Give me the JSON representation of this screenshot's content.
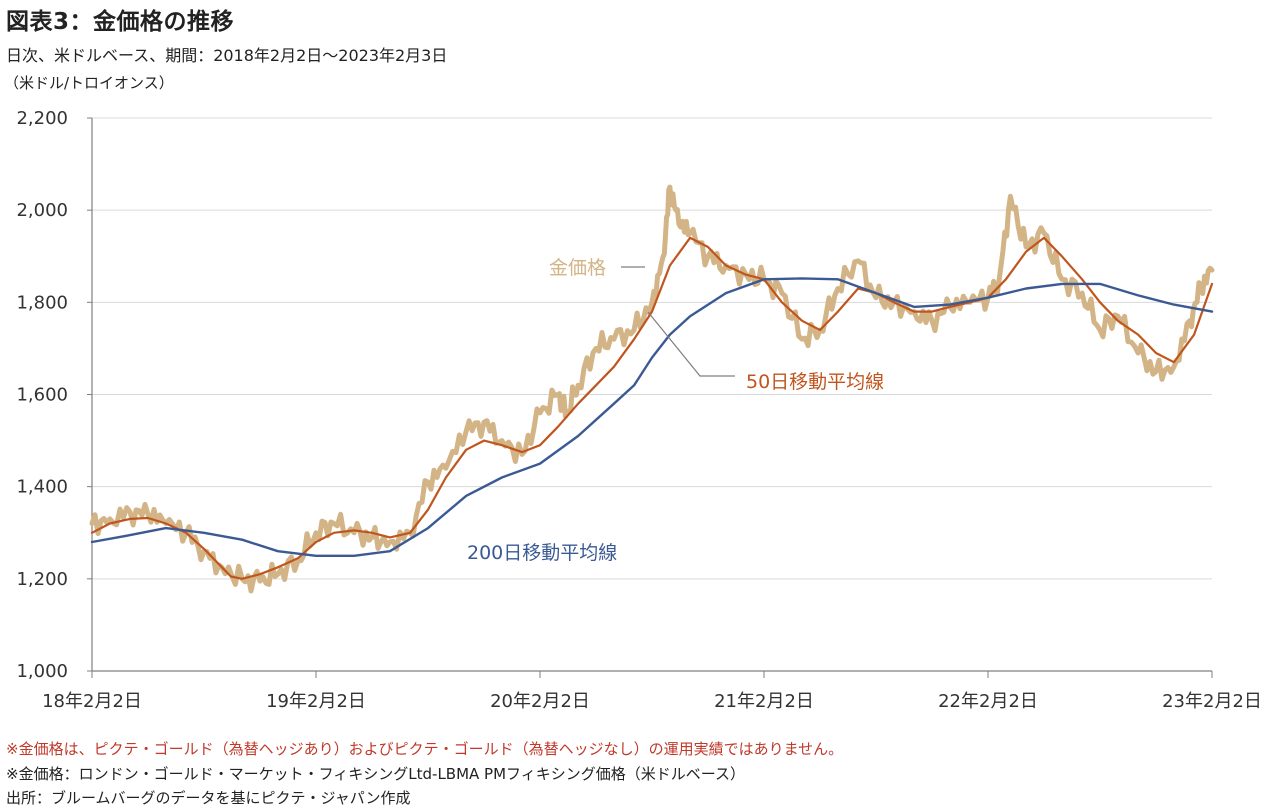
{
  "header": {
    "title": "図表3：金価格の推移",
    "subtitle": "日次、米ドルベース、期間：2018年2月2日～2023年2月3日",
    "unit": "（米ドル/トロイオンス）"
  },
  "notes": {
    "red": "※金価格は、ピクテ・ゴールド（為替ヘッジあり）およびピクテ・ゴールド（為替ヘッジなし）の運用実績ではありません。",
    "line1": "※金価格：ロンドン・ゴールド・マーケット・フィキシングLtd-LBMA PMフィキシング価格（米ドルベース）",
    "line2": "出所：ブルームバーグのデータを基にピクテ・ジャパン作成"
  },
  "colors": {
    "gold": "#d2b486",
    "ma50": "#c0561e",
    "ma200": "#3b5a94",
    "grid": "#d9d9d9",
    "axis": "#808080",
    "note_red": "#c0392b"
  },
  "chart_data": {
    "type": "line",
    "ylim": [
      1000,
      2200
    ],
    "yticks": [
      "1,000",
      "1,200",
      "1,400",
      "1,600",
      "1,800",
      "2,000",
      "2,200"
    ],
    "ytick_values": [
      1000,
      1200,
      1400,
      1600,
      1800,
      2000,
      2200
    ],
    "xlim": [
      2018.0,
      2023.0
    ],
    "xticks": [
      "18年2月2日",
      "19年2月2日",
      "20年2月2日",
      "21年2月2日",
      "22年2月2日",
      "23年2月2日"
    ],
    "xtick_values": [
      2018.0,
      2019.0,
      2020.0,
      2021.0,
      2022.0,
      2023.0
    ],
    "grid": "horizontal",
    "series": [
      {
        "name": "金価格",
        "color": "#d2b486",
        "points": [
          [
            2018.0,
            1320
          ],
          [
            2018.08,
            1330
          ],
          [
            2018.17,
            1345
          ],
          [
            2018.25,
            1340
          ],
          [
            2018.33,
            1320
          ],
          [
            2018.42,
            1300
          ],
          [
            2018.5,
            1260
          ],
          [
            2018.58,
            1225
          ],
          [
            2018.67,
            1200
          ],
          [
            2018.75,
            1195
          ],
          [
            2018.83,
            1210
          ],
          [
            2018.92,
            1240
          ],
          [
            2019.0,
            1300
          ],
          [
            2019.08,
            1320
          ],
          [
            2019.17,
            1300
          ],
          [
            2019.25,
            1290
          ],
          [
            2019.33,
            1280
          ],
          [
            2019.42,
            1300
          ],
          [
            2019.5,
            1410
          ],
          [
            2019.58,
            1440
          ],
          [
            2019.67,
            1520
          ],
          [
            2019.75,
            1540
          ],
          [
            2019.83,
            1500
          ],
          [
            2019.92,
            1470
          ],
          [
            2020.0,
            1560
          ],
          [
            2020.08,
            1600
          ],
          [
            2020.12,
            1560
          ],
          [
            2020.17,
            1620
          ],
          [
            2020.25,
            1700
          ],
          [
            2020.33,
            1720
          ],
          [
            2020.42,
            1740
          ],
          [
            2020.5,
            1800
          ],
          [
            2020.55,
            1900
          ],
          [
            2020.58,
            2050
          ],
          [
            2020.62,
            1970
          ],
          [
            2020.67,
            1950
          ],
          [
            2020.75,
            1900
          ],
          [
            2020.83,
            1880
          ],
          [
            2020.92,
            1860
          ],
          [
            2021.0,
            1850
          ],
          [
            2021.08,
            1820
          ],
          [
            2021.17,
            1720
          ],
          [
            2021.25,
            1740
          ],
          [
            2021.33,
            1830
          ],
          [
            2021.42,
            1890
          ],
          [
            2021.5,
            1810
          ],
          [
            2021.58,
            1800
          ],
          [
            2021.67,
            1780
          ],
          [
            2021.75,
            1760
          ],
          [
            2021.83,
            1790
          ],
          [
            2021.92,
            1800
          ],
          [
            2022.0,
            1810
          ],
          [
            2022.05,
            1850
          ],
          [
            2022.1,
            2030
          ],
          [
            2022.17,
            1920
          ],
          [
            2022.25,
            1950
          ],
          [
            2022.33,
            1850
          ],
          [
            2022.42,
            1820
          ],
          [
            2022.5,
            1740
          ],
          [
            2022.58,
            1770
          ],
          [
            2022.67,
            1690
          ],
          [
            2022.75,
            1650
          ],
          [
            2022.83,
            1660
          ],
          [
            2022.9,
            1760
          ],
          [
            2022.95,
            1830
          ],
          [
            2023.0,
            1870
          ]
        ]
      },
      {
        "name": "50日移動平均線",
        "color": "#c0561e",
        "points": [
          [
            2018.0,
            1300
          ],
          [
            2018.08,
            1320
          ],
          [
            2018.17,
            1330
          ],
          [
            2018.25,
            1332
          ],
          [
            2018.33,
            1320
          ],
          [
            2018.42,
            1300
          ],
          [
            2018.5,
            1265
          ],
          [
            2018.58,
            1225
          ],
          [
            2018.62,
            1205
          ],
          [
            2018.67,
            1200
          ],
          [
            2018.75,
            1210
          ],
          [
            2018.83,
            1225
          ],
          [
            2018.92,
            1245
          ],
          [
            2019.0,
            1280
          ],
          [
            2019.08,
            1300
          ],
          [
            2019.17,
            1305
          ],
          [
            2019.25,
            1300
          ],
          [
            2019.33,
            1290
          ],
          [
            2019.42,
            1300
          ],
          [
            2019.5,
            1350
          ],
          [
            2019.58,
            1420
          ],
          [
            2019.67,
            1480
          ],
          [
            2019.75,
            1500
          ],
          [
            2019.83,
            1490
          ],
          [
            2019.92,
            1475
          ],
          [
            2020.0,
            1490
          ],
          [
            2020.08,
            1530
          ],
          [
            2020.17,
            1580
          ],
          [
            2020.25,
            1620
          ],
          [
            2020.33,
            1660
          ],
          [
            2020.42,
            1720
          ],
          [
            2020.5,
            1780
          ],
          [
            2020.58,
            1880
          ],
          [
            2020.67,
            1940
          ],
          [
            2020.75,
            1920
          ],
          [
            2020.83,
            1880
          ],
          [
            2020.92,
            1860
          ],
          [
            2021.0,
            1850
          ],
          [
            2021.08,
            1800
          ],
          [
            2021.17,
            1760
          ],
          [
            2021.25,
            1740
          ],
          [
            2021.33,
            1780
          ],
          [
            2021.42,
            1830
          ],
          [
            2021.5,
            1820
          ],
          [
            2021.58,
            1800
          ],
          [
            2021.67,
            1780
          ],
          [
            2021.75,
            1780
          ],
          [
            2021.83,
            1790
          ],
          [
            2021.92,
            1800
          ],
          [
            2022.0,
            1810
          ],
          [
            2022.08,
            1850
          ],
          [
            2022.17,
            1910
          ],
          [
            2022.25,
            1940
          ],
          [
            2022.33,
            1900
          ],
          [
            2022.42,
            1850
          ],
          [
            2022.5,
            1800
          ],
          [
            2022.58,
            1760
          ],
          [
            2022.67,
            1730
          ],
          [
            2022.75,
            1690
          ],
          [
            2022.83,
            1670
          ],
          [
            2022.92,
            1730
          ],
          [
            2023.0,
            1840
          ]
        ]
      },
      {
        "name": "200日移動平均線",
        "color": "#3b5a94",
        "points": [
          [
            2018.0,
            1280
          ],
          [
            2018.17,
            1295
          ],
          [
            2018.33,
            1310
          ],
          [
            2018.5,
            1300
          ],
          [
            2018.67,
            1285
          ],
          [
            2018.83,
            1260
          ],
          [
            2019.0,
            1250
          ],
          [
            2019.17,
            1250
          ],
          [
            2019.33,
            1260
          ],
          [
            2019.5,
            1310
          ],
          [
            2019.67,
            1380
          ],
          [
            2019.83,
            1420
          ],
          [
            2020.0,
            1450
          ],
          [
            2020.17,
            1510
          ],
          [
            2020.33,
            1580
          ],
          [
            2020.42,
            1620
          ],
          [
            2020.5,
            1680
          ],
          [
            2020.58,
            1730
          ],
          [
            2020.67,
            1770
          ],
          [
            2020.83,
            1820
          ],
          [
            2021.0,
            1850
          ],
          [
            2021.17,
            1852
          ],
          [
            2021.33,
            1850
          ],
          [
            2021.5,
            1820
          ],
          [
            2021.67,
            1790
          ],
          [
            2021.83,
            1795
          ],
          [
            2022.0,
            1810
          ],
          [
            2022.17,
            1830
          ],
          [
            2022.33,
            1840
          ],
          [
            2022.5,
            1840
          ],
          [
            2022.67,
            1815
          ],
          [
            2022.83,
            1795
          ],
          [
            2023.0,
            1780
          ]
        ]
      }
    ],
    "annotations": [
      {
        "text": "金価格",
        "series": 0
      },
      {
        "text": "50日移動平均線",
        "series": 1
      },
      {
        "text": "200日移動平均線",
        "series": 2
      }
    ]
  }
}
